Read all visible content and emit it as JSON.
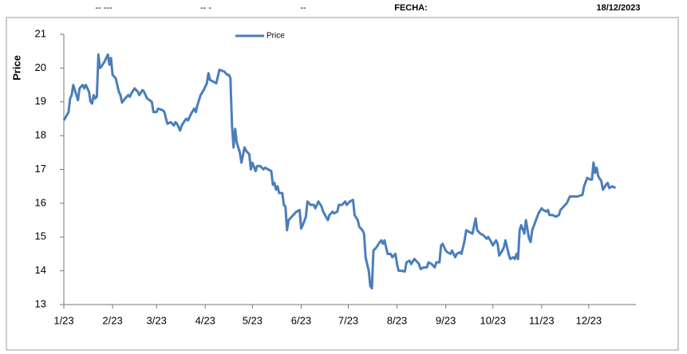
{
  "header": {
    "fields": [
      "-- ---",
      "-- -",
      "--"
    ],
    "label": "FECHA:",
    "date": "18/12/2023"
  },
  "chart_data": {
    "type": "line",
    "ylabel": "Price",
    "x": [
      0,
      3,
      4,
      5,
      6,
      8,
      9,
      10,
      12,
      13,
      14,
      16,
      17,
      18,
      19,
      20,
      21,
      22,
      23,
      24,
      26,
      28,
      29,
      30,
      31,
      33,
      35,
      36,
      37,
      39,
      41,
      42,
      43,
      45,
      47,
      48,
      50,
      51,
      53,
      56,
      57,
      59,
      60,
      63,
      64,
      65,
      66,
      68,
      70,
      71,
      72,
      74,
      75,
      77,
      78,
      79,
      81,
      83,
      84,
      85,
      87,
      89,
      91,
      92,
      93,
      95,
      97,
      99,
      102,
      104,
      105,
      106,
      107,
      108,
      109,
      110,
      112,
      113,
      115,
      116,
      118,
      119,
      120,
      122,
      123,
      125,
      127,
      128,
      130,
      132,
      133,
      134,
      135,
      136,
      137,
      139,
      140,
      141,
      142,
      143,
      145,
      146,
      148,
      150,
      151,
      152,
      154,
      155,
      157,
      159,
      160,
      162,
      164,
      165,
      168,
      169,
      171,
      172,
      174,
      175,
      177,
      179,
      180,
      182,
      184,
      185,
      187,
      188,
      190,
      191,
      192,
      194,
      195,
      196,
      197,
      199,
      201,
      202,
      203,
      204,
      206,
      208,
      209,
      211,
      212,
      213,
      215,
      217,
      218,
      220,
      221,
      223,
      224,
      226,
      227,
      229,
      231,
      232,
      234,
      236,
      237,
      239,
      240,
      241,
      243,
      244,
      246,
      247,
      249,
      250,
      252,
      253,
      255,
      256,
      258,
      260,
      262,
      263,
      265,
      267,
      269,
      270,
      272,
      273,
      275,
      276,
      277,
      279,
      280,
      281,
      283,
      284,
      286,
      287,
      288,
      289,
      290,
      291,
      293,
      294,
      296,
      297,
      298,
      300,
      302,
      304,
      305,
      307,
      308,
      309,
      311,
      313,
      315,
      316,
      318,
      320,
      322,
      325,
      327,
      330,
      331,
      333,
      335,
      336,
      337,
      338,
      339,
      340,
      342,
      343,
      345,
      346,
      347,
      349,
      351
    ],
    "series": [
      {
        "name": "Price",
        "color": "#4a7ebb",
        "values": [
          18.45,
          18.7,
          19.1,
          19.2,
          19.5,
          19.2,
          19.05,
          19.4,
          19.5,
          19.4,
          19.5,
          19.3,
          19.0,
          18.95,
          19.2,
          19.1,
          19.15,
          20.4,
          20.0,
          20.05,
          20.2,
          20.4,
          20.1,
          20.3,
          19.8,
          19.7,
          19.3,
          19.2,
          18.98,
          19.1,
          19.2,
          19.15,
          19.25,
          19.4,
          19.3,
          19.2,
          19.35,
          19.3,
          19.1,
          19.0,
          18.7,
          18.7,
          18.8,
          18.75,
          18.7,
          18.5,
          18.35,
          18.4,
          18.3,
          18.4,
          18.35,
          18.15,
          18.3,
          18.45,
          18.5,
          18.45,
          18.65,
          18.8,
          18.7,
          18.9,
          19.2,
          19.35,
          19.55,
          19.85,
          19.65,
          19.6,
          19.55,
          19.95,
          19.9,
          19.8,
          19.8,
          19.7,
          18.3,
          17.65,
          18.2,
          17.8,
          17.5,
          17.2,
          17.65,
          17.55,
          17.45,
          17.0,
          17.2,
          16.95,
          17.1,
          17.1,
          17.0,
          17.05,
          17.0,
          16.95,
          16.55,
          16.6,
          16.4,
          16.5,
          16.3,
          16.3,
          15.95,
          15.9,
          15.2,
          15.5,
          15.6,
          15.65,
          15.75,
          15.8,
          15.25,
          15.35,
          15.6,
          16.05,
          15.95,
          15.95,
          15.85,
          16.05,
          15.9,
          15.75,
          15.5,
          15.65,
          15.75,
          15.7,
          15.75,
          15.95,
          15.95,
          16.05,
          15.95,
          16.05,
          16.1,
          15.65,
          15.5,
          15.3,
          15.2,
          15.1,
          14.4,
          14.0,
          13.55,
          13.48,
          14.6,
          14.7,
          14.85,
          14.9,
          14.8,
          14.9,
          14.5,
          14.5,
          14.4,
          14.5,
          14.2,
          14.0,
          14.0,
          13.98,
          14.25,
          14.3,
          14.2,
          14.35,
          14.3,
          14.2,
          14.05,
          14.1,
          14.1,
          14.25,
          14.2,
          14.1,
          14.25,
          14.25,
          14.75,
          14.8,
          14.6,
          14.55,
          14.5,
          14.6,
          14.4,
          14.5,
          14.55,
          14.5,
          14.9,
          15.2,
          15.15,
          15.1,
          15.55,
          15.2,
          15.1,
          15.05,
          14.95,
          15.0,
          14.85,
          14.75,
          14.9,
          14.8,
          14.45,
          14.6,
          14.7,
          14.9,
          14.5,
          14.35,
          14.4,
          14.35,
          14.5,
          14.35,
          15.2,
          15.35,
          15.1,
          15.5,
          14.95,
          14.85,
          15.2,
          15.45,
          15.7,
          15.85,
          15.8,
          15.75,
          15.8,
          15.65,
          15.65,
          15.6,
          15.65,
          15.8,
          15.9,
          16.0,
          16.2,
          16.2,
          16.2,
          16.25,
          16.5,
          16.75,
          16.7,
          16.7,
          17.2,
          16.9,
          17.05,
          16.8,
          16.65,
          16.4,
          16.55,
          16.6,
          16.45,
          16.5,
          16.45
        ]
      }
    ],
    "xlim": [
      0,
      364
    ],
    "xticks": [
      {
        "value": 0,
        "label": "1/23"
      },
      {
        "value": 31,
        "label": "2/23"
      },
      {
        "value": 59,
        "label": "3/23"
      },
      {
        "value": 90,
        "label": "4/23"
      },
      {
        "value": 120,
        "label": "5/23"
      },
      {
        "value": 151,
        "label": "6/23"
      },
      {
        "value": 181,
        "label": "7/23"
      },
      {
        "value": 212,
        "label": "8/23"
      },
      {
        "value": 243,
        "label": "9/23"
      },
      {
        "value": 273,
        "label": "10/23"
      },
      {
        "value": 304,
        "label": "11/23"
      },
      {
        "value": 334,
        "label": "12/23"
      }
    ],
    "ylim": [
      13,
      21
    ],
    "yticks": [
      13,
      14,
      15,
      16,
      17,
      18,
      19,
      20,
      21
    ],
    "legend": "top"
  }
}
